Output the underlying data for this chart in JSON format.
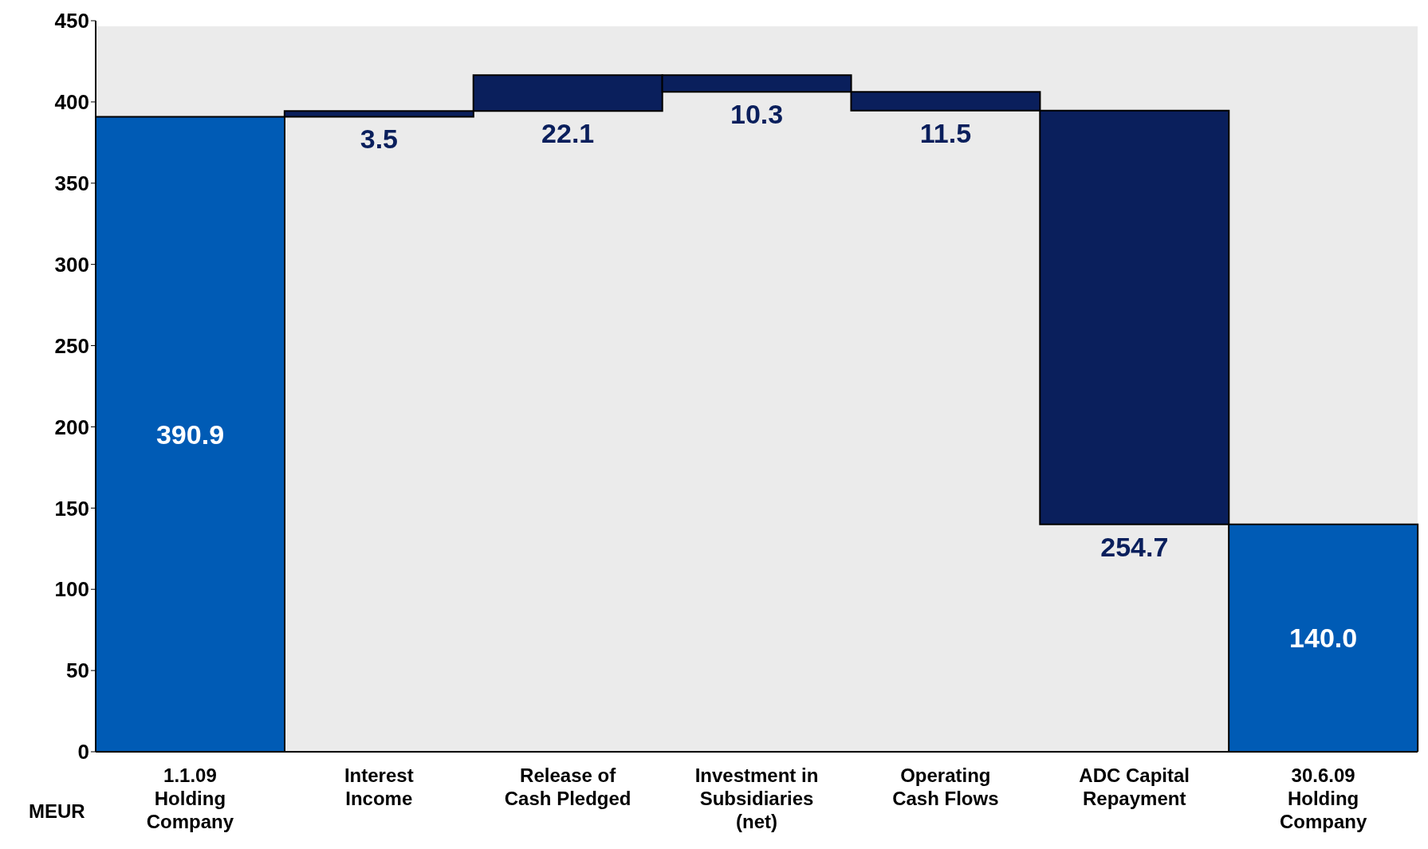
{
  "chart_data": {
    "type": "bar",
    "categories": [
      "1.1.09 Holding Company",
      "Interest Income",
      "Release of Cash Pledged",
      "Investment in Subsidiaries (net)",
      "Operating Cash Flows",
      "ADC Capital Repayment",
      "30.6.09 Holding Company"
    ],
    "values": [
      390.9,
      3.5,
      22.1,
      -10.3,
      -11.5,
      -254.7,
      140.0
    ],
    "base": [
      0,
      390.9,
      394.4,
      416.5,
      406.2,
      394.7,
      0
    ],
    "colors": [
      "#005bb5",
      "#0a1f5c",
      "#0a1f5c",
      "#0a1f5c",
      "#0a1f5c",
      "#0a1f5c",
      "#005bb5"
    ],
    "value_labels": [
      "390.9",
      "3.5",
      "22.1",
      "10.3",
      "11.5",
      "254.7",
      "140.0"
    ],
    "ylim": [
      0,
      450
    ],
    "yticks": [
      0,
      50,
      100,
      150,
      200,
      250,
      300,
      350,
      400,
      450
    ],
    "annotations": [
      "MEUR"
    ]
  }
}
